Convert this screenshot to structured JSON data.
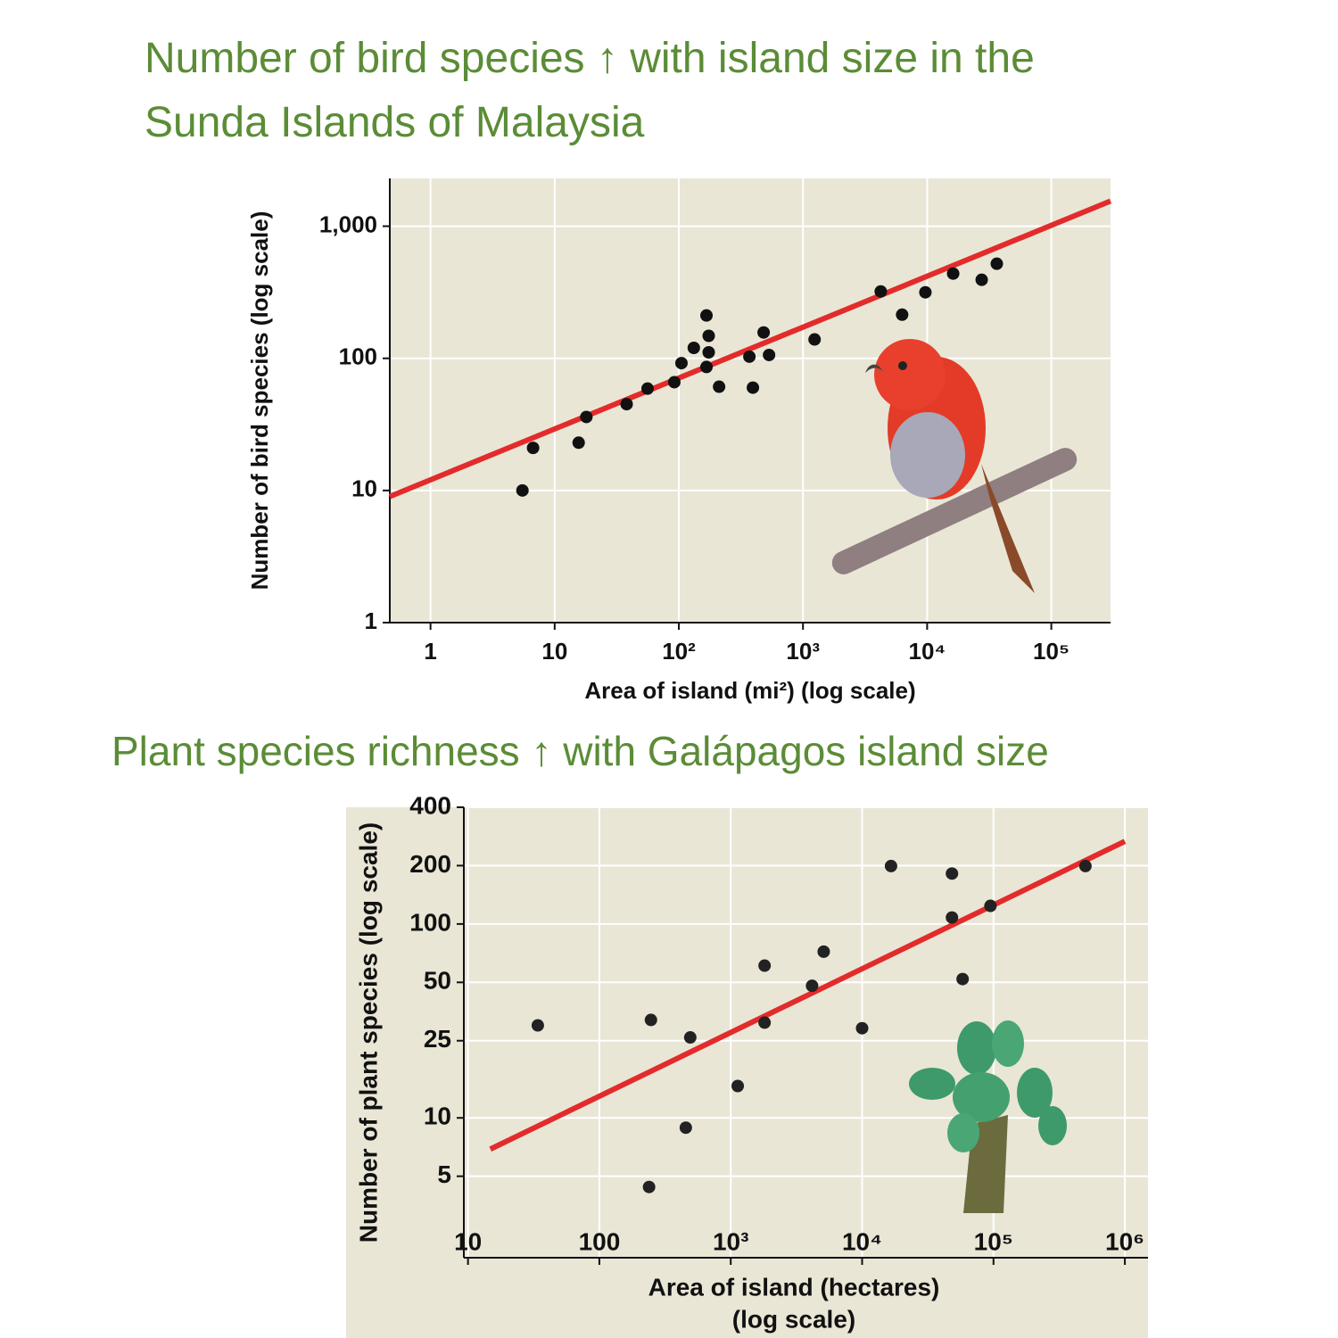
{
  "chart_data": [
    {
      "type": "scatter",
      "title": "Number of bird species ↑ with island size in the Sunda Islands of Malaysia",
      "x_label": [
        "Area of island (mi²) (log scale)"
      ],
      "y_label": "Number of bird species (log scale)",
      "log_x": true,
      "log_y": true,
      "grid": true,
      "color": "#111111",
      "xlim": [
        0.47,
        300000
      ],
      "ylim": [
        1,
        2300
      ],
      "xticks": [
        1,
        10,
        {
          "value": 100,
          "label": "10²"
        },
        {
          "value": 1000,
          "label": "10³"
        },
        {
          "value": 10000,
          "label": "10⁴"
        },
        {
          "value": 100000,
          "label": "10⁵"
        }
      ],
      "yticks": [
        1,
        10,
        100,
        {
          "value": 1000,
          "label": "1,000"
        }
      ],
      "x": [
        5.5,
        6.7,
        15.6,
        18,
        38,
        56,
        92,
        105,
        132,
        167,
        174,
        174,
        167,
        211,
        370,
        395,
        482,
        533,
        1240,
        4230,
        6290,
        9680,
        16200,
        27500,
        36400
      ],
      "values": [
        10,
        21,
        23,
        36,
        45,
        59,
        66,
        92,
        120,
        211,
        148,
        111,
        86,
        61,
        103,
        60,
        157,
        106,
        139,
        321,
        214,
        316,
        438,
        393,
        520
      ],
      "trend": {
        "color": "#e32b2b",
        "x": [
          0.47,
          300000
        ],
        "values": [
          9,
          1550
        ]
      }
    },
    {
      "type": "scatter",
      "title": "Plant species richness ↑ with Galápagos island size",
      "x_label": [
        "Area of island (hectares)",
        "(log scale)"
      ],
      "y_label": "Number of plant species (log scale)",
      "log_x": true,
      "log_y": true,
      "grid": true,
      "color": "#222222",
      "xlim": [
        9.3,
        1500000
      ],
      "ylim": [
        1.9,
        400
      ],
      "xticks": [
        10,
        100,
        {
          "value": 1000,
          "label": "10³"
        },
        {
          "value": 10000,
          "label": "10⁴"
        },
        {
          "value": 100000,
          "label": "10⁵"
        },
        {
          "value": 1000000,
          "label": "10⁶"
        }
      ],
      "yticks": [
        5,
        10,
        25,
        50,
        100,
        200,
        400
      ],
      "x": [
        34,
        247,
        492,
        455,
        239,
        1130,
        1810,
        1810,
        4160,
        5100,
        10000,
        16600,
        48300,
        48300,
        58200,
        94800,
        501000
      ],
      "values": [
        30,
        32,
        26,
        8.9,
        4.4,
        14.6,
        61,
        31,
        48,
        72,
        29,
        199,
        182,
        108,
        52,
        124,
        199
      ],
      "trend": {
        "color": "#e32b2b",
        "x": [
          14.8,
          1000000
        ],
        "values": [
          6.9,
          267
        ]
      }
    }
  ]
}
